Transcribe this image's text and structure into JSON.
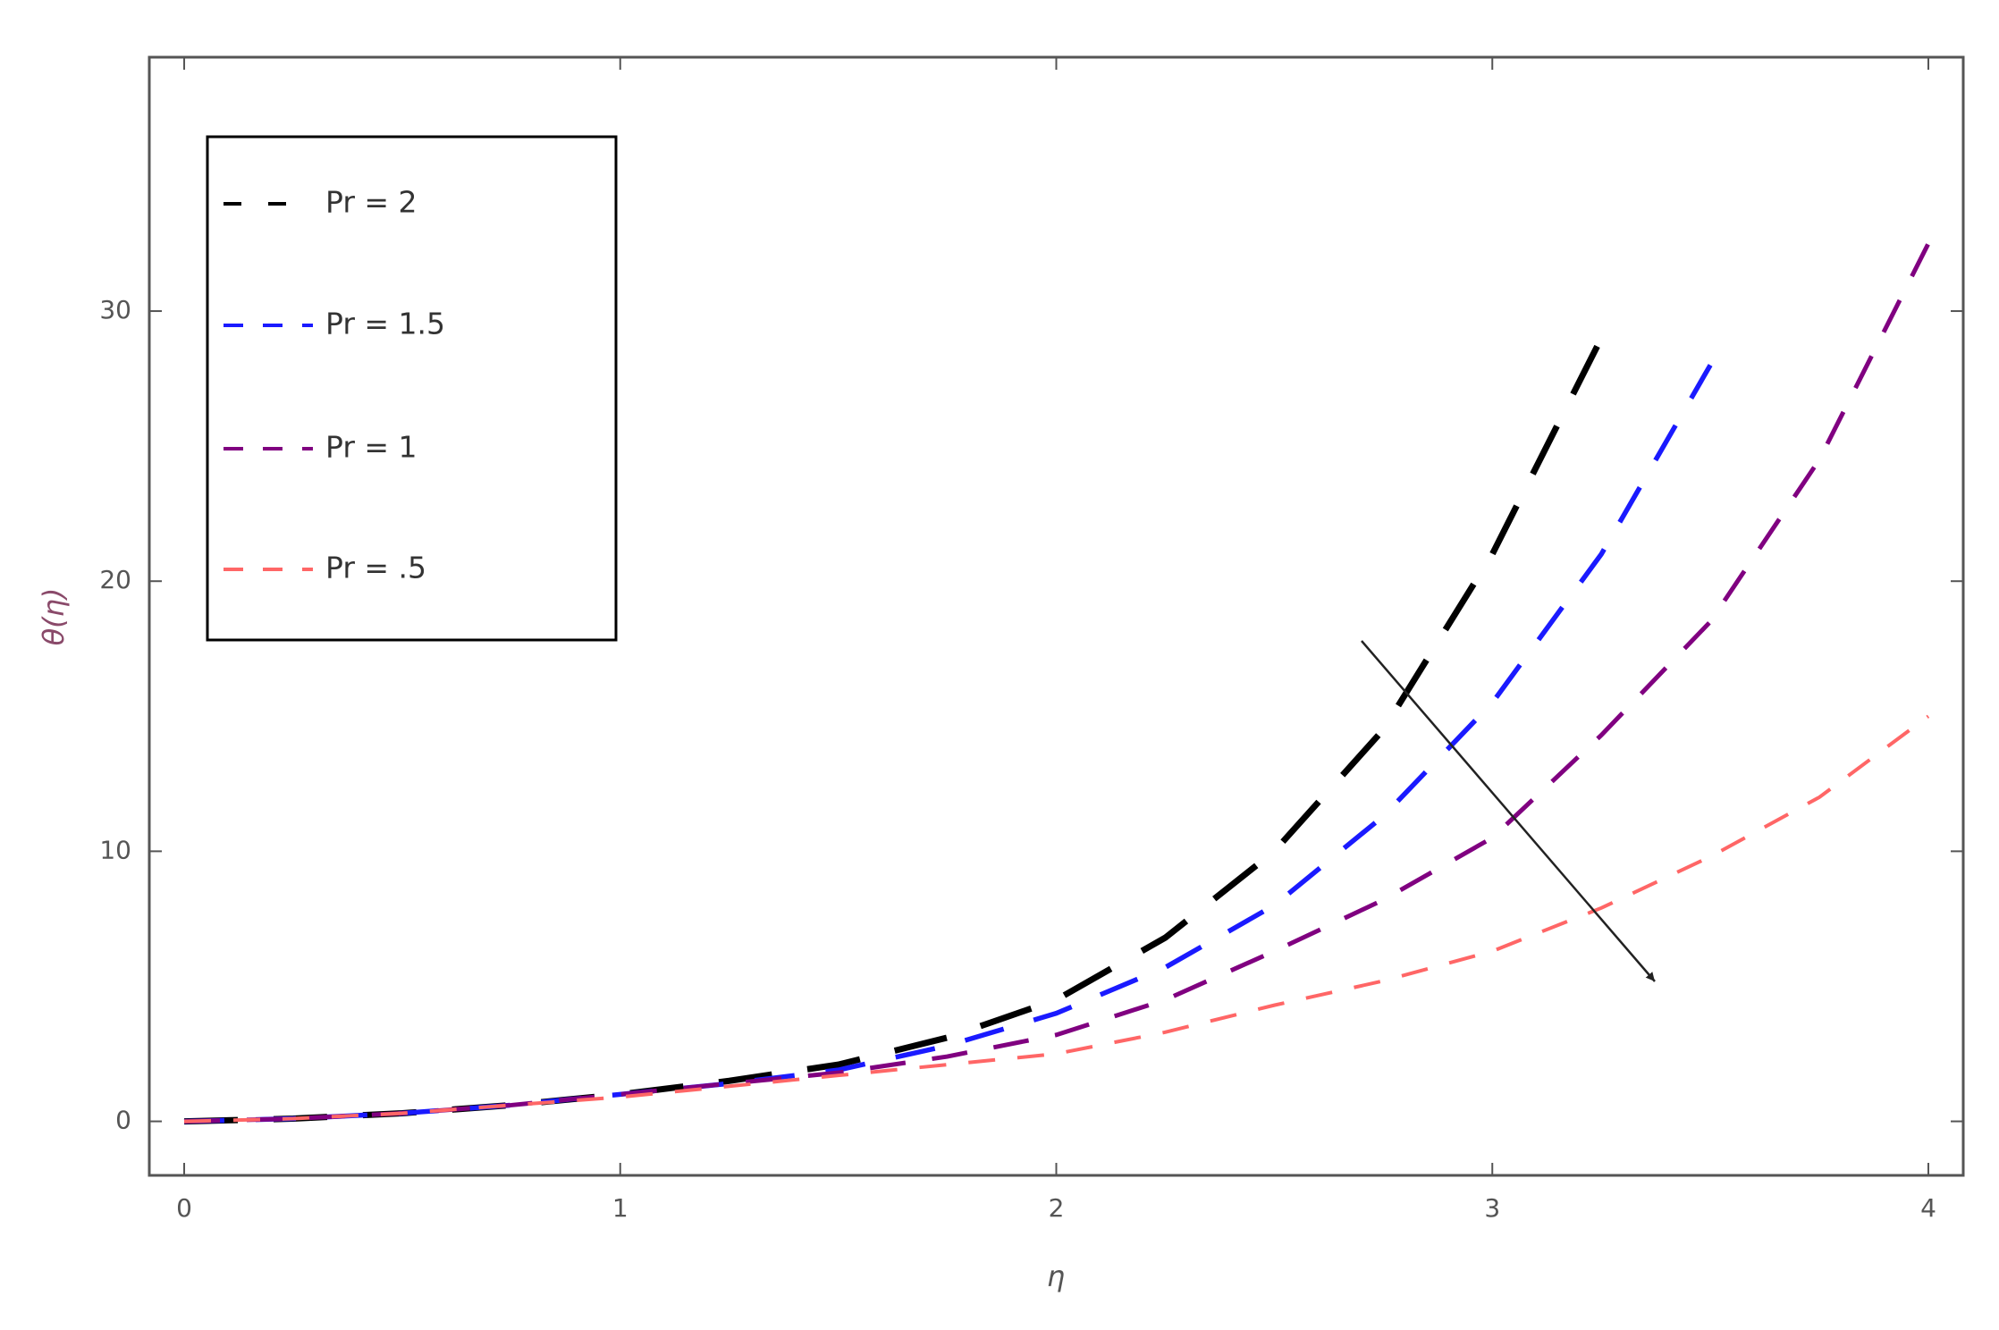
{
  "chart_data": {
    "type": "line",
    "x_label": "η",
    "y_label": "θ(η)",
    "x": [
      0,
      0.25,
      0.5,
      0.75,
      1,
      1.25,
      1.5,
      1.75,
      2,
      2.25,
      2.5,
      2.75,
      3,
      3.25,
      3.5,
      3.75,
      4
    ],
    "series": [
      {
        "name": "Pr = 2",
        "color": "#000000",
        "values": [
          0,
          0.1,
          0.3,
          0.6,
          1.0,
          1.5,
          2.1,
          3.1,
          4.5,
          6.8,
          10,
          14.5,
          21,
          29,
          null,
          null,
          null
        ]
      },
      {
        "name": "Pr = 1.5",
        "color": "#1a1aff",
        "values": [
          0,
          0.1,
          0.3,
          0.6,
          1.0,
          1.4,
          1.9,
          2.8,
          4.0,
          5.7,
          8.0,
          11.3,
          15.5,
          21,
          28,
          null,
          null
        ]
      },
      {
        "name": "Pr = 1",
        "color": "#800080",
        "values": [
          0,
          0.1,
          0.3,
          0.6,
          1.0,
          1.4,
          1.8,
          2.4,
          3.2,
          4.5,
          6.3,
          8.2,
          10.5,
          14.3,
          18.5,
          24.5,
          32.5
        ]
      },
      {
        "name": "Pr = .5",
        "color": "#ff6666",
        "values": [
          0,
          0.1,
          0.3,
          0.6,
          0.9,
          1.3,
          1.7,
          2.1,
          2.5,
          3.3,
          4.3,
          5.2,
          6.3,
          7.9,
          9.8,
          12,
          15
        ]
      }
    ],
    "xlim": [
      -0.08,
      4.08
    ],
    "ylim": [
      -2,
      39.4
    ],
    "xticks": [
      0,
      1,
      2,
      3,
      4
    ],
    "yticks": [
      0,
      10,
      20,
      30
    ],
    "legend": "top-left"
  }
}
